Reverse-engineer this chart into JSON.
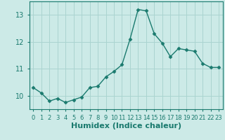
{
  "xlabel": "Humidex (Indice chaleur)",
  "x": [
    0,
    1,
    2,
    3,
    4,
    5,
    6,
    7,
    8,
    9,
    10,
    11,
    12,
    13,
    14,
    15,
    16,
    17,
    18,
    19,
    20,
    21,
    22,
    23
  ],
  "y": [
    10.3,
    10.1,
    9.8,
    9.9,
    9.75,
    9.85,
    9.95,
    10.3,
    10.35,
    10.7,
    10.9,
    11.15,
    12.1,
    13.2,
    13.15,
    12.3,
    11.95,
    11.45,
    11.75,
    11.7,
    11.65,
    11.2,
    11.05,
    11.05
  ],
  "line_color": "#1a7a6e",
  "marker": "D",
  "marker_size": 2.5,
  "line_width": 1.0,
  "background_color": "#cceae7",
  "grid_color": "#aad4d0",
  "tick_color": "#1a7a6e",
  "label_color": "#1a7a6e",
  "ylim": [
    9.5,
    13.5
  ],
  "yticks": [
    10,
    11,
    12,
    13
  ],
  "xlim": [
    -0.5,
    23.5
  ],
  "xlabel_fontsize": 8,
  "tick_fontsize": 7
}
